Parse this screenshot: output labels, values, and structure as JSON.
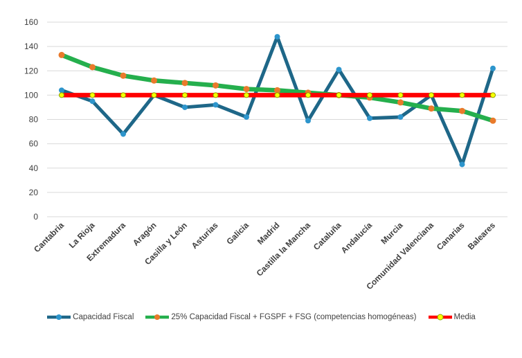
{
  "chart_data": {
    "type": "line",
    "title": "",
    "xlabel": "",
    "ylabel": "",
    "ylim": [
      0,
      160
    ],
    "ytick_step": 20,
    "grid": true,
    "grid_color": "#D9D9D9",
    "axis_text_color": "#404040",
    "background": "#FFFFFF",
    "legend_position": "bottom",
    "categories": [
      "Cantabria",
      "La Rioja",
      "Extremadura",
      "Aragón",
      "Casilla y León",
      "Asturias",
      "Galicia",
      "Madrid",
      "Castilla la Mancha",
      "Cataluña",
      "Andalucía",
      "Murcia",
      "Comunidad Valenciana",
      "Canarias",
      "Baleares"
    ],
    "series": [
      {
        "name": "Capacidad Fiscal",
        "line_color": "#1E6788",
        "marker_color": "#2D95CC",
        "marker_outline": "none",
        "line_width": 5,
        "marker_radius": 4,
        "values": [
          104,
          95,
          68,
          100,
          90,
          92,
          82,
          148,
          79,
          121,
          81,
          82,
          100,
          43,
          122
        ]
      },
      {
        "name": "25% Capacidad Fiscal + FGSPF + FSG (competencias homogéneas)",
        "line_color": "#25AF4D",
        "marker_color": "#E97A2B",
        "marker_outline": "none",
        "line_width": 6.5,
        "marker_radius": 4.5,
        "values": [
          133,
          123,
          116,
          112,
          110,
          108,
          105,
          104,
          102,
          100,
          98,
          94,
          89,
          87,
          79
        ]
      },
      {
        "name": "Media",
        "line_color": "#FF0000",
        "marker_color": "#FFFF00",
        "marker_outline": "#86A500",
        "line_width": 6.5,
        "marker_radius": 3.5,
        "values": [
          100,
          100,
          100,
          100,
          100,
          100,
          100,
          100,
          100,
          100,
          100,
          100,
          100,
          100,
          100
        ]
      }
    ]
  }
}
